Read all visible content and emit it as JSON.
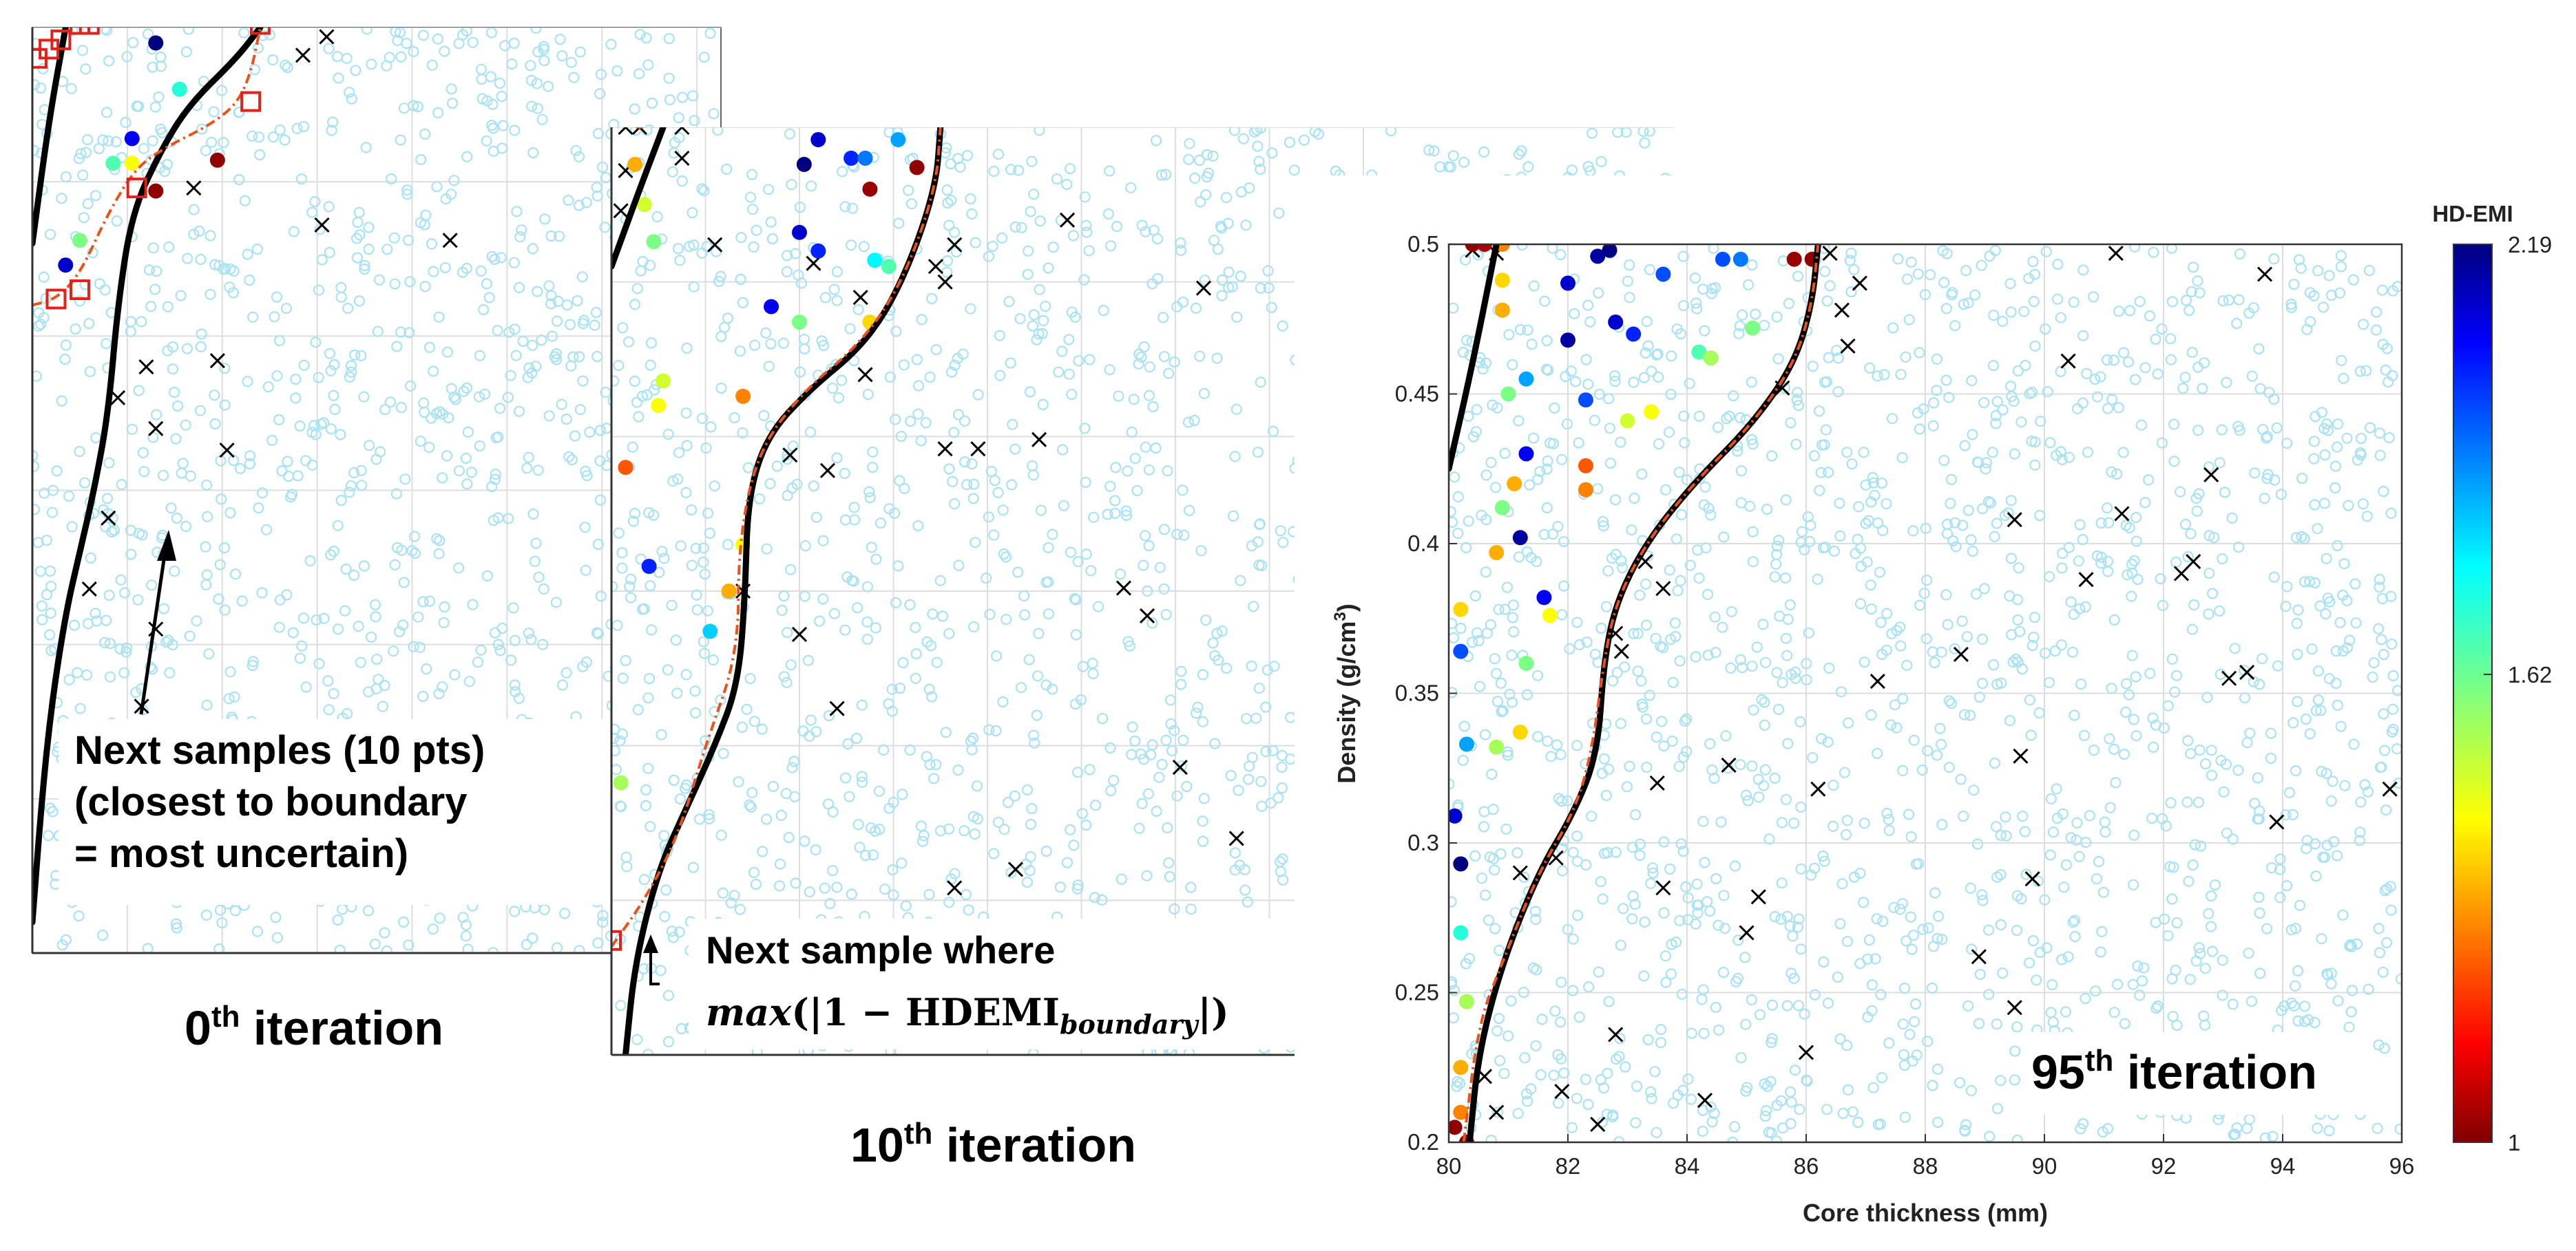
{
  "chart_data": [
    {
      "type": "scatter",
      "panel": "0th iteration",
      "title": "0th iteration",
      "title_ordinal": "0",
      "title_suffix": "th",
      "title_rest": " iteration",
      "xlim": [
        80,
        96
      ],
      "ylim": [
        0.2,
        0.5
      ],
      "annotation": [
        "Next samples (10 pts)",
        "(closest to boundary",
        "= most uncertain)"
      ],
      "true_boundary": [
        [
          80.0,
          0.21
        ],
        [
          80.2,
          0.25
        ],
        [
          80.4,
          0.28
        ],
        [
          80.7,
          0.31
        ],
        [
          81.0,
          0.33
        ],
        [
          81.3,
          0.35
        ],
        [
          81.6,
          0.375
        ],
        [
          81.8,
          0.41
        ],
        [
          82.1,
          0.44
        ],
        [
          82.7,
          0.46
        ],
        [
          83.3,
          0.475
        ],
        [
          84.3,
          0.49
        ],
        [
          84.8,
          0.5
        ]
      ],
      "true_boundary_left": [
        [
          80.0,
          0.43
        ],
        [
          80.35,
          0.47
        ],
        [
          80.7,
          0.5
        ]
      ],
      "estimated_boundary": [
        [
          80.0,
          0.41
        ],
        [
          80.5,
          0.412
        ],
        [
          81.0,
          0.42
        ],
        [
          81.6,
          0.44
        ],
        [
          82.2,
          0.455
        ],
        [
          82.9,
          0.462
        ],
        [
          83.7,
          0.468
        ],
        [
          84.3,
          0.475
        ],
        [
          84.6,
          0.485
        ],
        [
          84.8,
          0.5
        ]
      ],
      "next_samples": [
        [
          80.5,
          0.412
        ],
        [
          81.0,
          0.415
        ],
        [
          82.2,
          0.448
        ],
        [
          84.6,
          0.476
        ],
        [
          80.1,
          0.49
        ],
        [
          80.35,
          0.493
        ],
        [
          80.6,
          0.496
        ],
        [
          81.0,
          0.501
        ],
        [
          81.2,
          0.501
        ],
        [
          84.8,
          0.501
        ]
      ],
      "infeasible_x": [
        [
          86.2,
          0.497
        ],
        [
          85.7,
          0.491
        ],
        [
          83.4,
          0.448
        ],
        [
          86.1,
          0.436
        ],
        [
          88.8,
          0.431
        ],
        [
          82.4,
          0.39
        ],
        [
          83.9,
          0.392
        ],
        [
          81.8,
          0.38
        ],
        [
          82.6,
          0.37
        ],
        [
          84.1,
          0.363
        ],
        [
          81.6,
          0.341
        ],
        [
          81.2,
          0.318
        ],
        [
          82.6,
          0.305
        ],
        [
          82.3,
          0.28
        ],
        [
          81.7,
          0.27
        ]
      ],
      "labeled_points": [
        {
          "x": 82.6,
          "y": 0.495,
          "v": 2.19
        },
        {
          "x": 83.1,
          "y": 0.48,
          "v": 1.7
        },
        {
          "x": 82.1,
          "y": 0.464,
          "v": 2.05
        },
        {
          "x": 81.7,
          "y": 0.456,
          "v": 1.65
        },
        {
          "x": 82.1,
          "y": 0.456,
          "v": 1.45
        },
        {
          "x": 83.9,
          "y": 0.457,
          "v": 1.02
        },
        {
          "x": 82.6,
          "y": 0.447,
          "v": 1.02
        },
        {
          "x": 81.0,
          "y": 0.431,
          "v": 1.6
        },
        {
          "x": 80.7,
          "y": 0.423,
          "v": 2.1
        }
      ]
    },
    {
      "type": "scatter",
      "panel": "10th iteration",
      "title": "10th iteration",
      "title_ordinal": "10",
      "title_suffix": "th",
      "title_rest": " iteration",
      "xlim": [
        80,
        96
      ],
      "ylim": [
        0.2,
        0.5
      ],
      "annotation": [
        "Next sample where"
      ],
      "formula": {
        "fn": "max",
        "body": "(|1 − HDEMI",
        "subscript": "boundary",
        "close": "|)"
      },
      "true_boundary": [
        [
          80.3,
          0.2
        ],
        [
          80.5,
          0.23
        ],
        [
          81.0,
          0.26
        ],
        [
          81.6,
          0.28
        ],
        [
          82.2,
          0.3
        ],
        [
          82.7,
          0.32
        ],
        [
          82.85,
          0.35
        ],
        [
          82.9,
          0.38
        ],
        [
          83.3,
          0.4
        ],
        [
          84.2,
          0.415
        ],
        [
          85.4,
          0.43
        ],
        [
          86.2,
          0.45
        ],
        [
          86.9,
          0.48
        ],
        [
          87.0,
          0.5
        ]
      ],
      "true_boundary_left": [
        [
          80.0,
          0.455
        ],
        [
          80.6,
          0.48
        ],
        [
          81.1,
          0.5
        ]
      ],
      "estimated_boundary": [
        [
          80.0,
          0.235
        ],
        [
          80.7,
          0.25
        ],
        [
          81.4,
          0.27
        ],
        [
          82.0,
          0.3
        ],
        [
          82.7,
          0.33
        ],
        [
          82.7,
          0.365
        ],
        [
          83.1,
          0.395
        ],
        [
          84.1,
          0.415
        ],
        [
          85.3,
          0.43
        ],
        [
          86.2,
          0.45
        ],
        [
          86.9,
          0.48
        ],
        [
          87.0,
          0.5
        ]
      ],
      "next_sample": [
        80.0,
        0.237
      ],
      "infeasible_x": [
        [
          80.3,
          0.5
        ],
        [
          80.6,
          0.5
        ],
        [
          81.5,
          0.5
        ],
        [
          81.5,
          0.49
        ],
        [
          80.3,
          0.486
        ],
        [
          80.2,
          0.473
        ],
        [
          82.2,
          0.462
        ],
        [
          84.3,
          0.456
        ],
        [
          85.3,
          0.445
        ],
        [
          86.9,
          0.455
        ],
        [
          87.1,
          0.45
        ],
        [
          87.3,
          0.462
        ],
        [
          89.7,
          0.47
        ],
        [
          92.6,
          0.448
        ],
        [
          89.1,
          0.399
        ],
        [
          85.4,
          0.42
        ],
        [
          87.1,
          0.396
        ],
        [
          87.8,
          0.396
        ],
        [
          84.6,
          0.389
        ],
        [
          83.8,
          0.394
        ],
        [
          90.9,
          0.351
        ],
        [
          91.4,
          0.342
        ],
        [
          82.8,
          0.35
        ],
        [
          84.0,
          0.336
        ],
        [
          84.8,
          0.312
        ],
        [
          92.1,
          0.293
        ],
        [
          95.1,
          0.278
        ],
        [
          93.3,
          0.27
        ],
        [
          87.3,
          0.254
        ],
        [
          88.6,
          0.26
        ]
      ],
      "labeled_points": [
        {
          "x": 80.6,
          "y": 0.502,
          "v": 1.25
        },
        {
          "x": 84.1,
          "y": 0.488,
          "v": 2.19
        },
        {
          "x": 84.4,
          "y": 0.496,
          "v": 2.1
        },
        {
          "x": 85.1,
          "y": 0.49,
          "v": 2.0
        },
        {
          "x": 85.4,
          "y": 0.49,
          "v": 1.9
        },
        {
          "x": 86.1,
          "y": 0.496,
          "v": 1.85
        },
        {
          "x": 80.5,
          "y": 0.488,
          "v": 1.35
        },
        {
          "x": 80.7,
          "y": 0.475,
          "v": 1.5
        },
        {
          "x": 80.9,
          "y": 0.463,
          "v": 1.6
        },
        {
          "x": 84.0,
          "y": 0.466,
          "v": 2.1
        },
        {
          "x": 84.4,
          "y": 0.46,
          "v": 2.0
        },
        {
          "x": 85.6,
          "y": 0.457,
          "v": 1.75
        },
        {
          "x": 85.9,
          "y": 0.455,
          "v": 1.65
        },
        {
          "x": 83.4,
          "y": 0.442,
          "v": 2.05
        },
        {
          "x": 84.0,
          "y": 0.437,
          "v": 1.6
        },
        {
          "x": 85.5,
          "y": 0.437,
          "v": 1.4
        },
        {
          "x": 81.1,
          "y": 0.418,
          "v": 1.5
        },
        {
          "x": 81.0,
          "y": 0.41,
          "v": 1.45
        },
        {
          "x": 82.8,
          "y": 0.413,
          "v": 1.3
        },
        {
          "x": 80.3,
          "y": 0.39,
          "v": 1.25
        },
        {
          "x": 80.8,
          "y": 0.358,
          "v": 2.0
        },
        {
          "x": 82.8,
          "y": 0.365,
          "v": 1.45
        },
        {
          "x": 82.5,
          "y": 0.35,
          "v": 1.35
        },
        {
          "x": 82.1,
          "y": 0.337,
          "v": 1.8
        },
        {
          "x": 80.2,
          "y": 0.288,
          "v": 1.55
        },
        {
          "x": 85.5,
          "y": 0.48,
          "v": 1.03
        },
        {
          "x": 86.5,
          "y": 0.487,
          "v": 1.02
        }
      ]
    },
    {
      "type": "scatter",
      "panel": "95th iteration",
      "title": "95th iteration",
      "title_ordinal": "95",
      "title_suffix": "th",
      "title_rest": " iteration",
      "xlabel": "Core thickness (mm)",
      "ylabel": "Density (g/cm",
      "ylabel_sup": "3",
      "ylabel_close": ")",
      "xlim": [
        80,
        96
      ],
      "ylim": [
        0.2,
        0.5
      ],
      "xticks": [
        80,
        82,
        84,
        86,
        88,
        90,
        92,
        94,
        96
      ],
      "yticks": [
        0.2,
        0.25,
        0.3,
        0.35,
        0.4,
        0.45,
        0.5
      ],
      "xtick_labels": [
        "80",
        "82",
        "84",
        "86",
        "88",
        "90",
        "92",
        "94",
        "96"
      ],
      "ytick_labels": [
        "0.2",
        "0.25",
        "0.3",
        "0.35",
        "0.4",
        "0.45",
        "0.5"
      ],
      "grid": true,
      "colorbar": {
        "title": "HD-EMI",
        "min": 1,
        "max": 2.19,
        "tick_values": [
          1,
          1.62,
          2.19
        ],
        "tick_labels": [
          "1",
          "1.62",
          "2.19"
        ],
        "colormap": "jet-reversed"
      },
      "true_boundary": [
        [
          80.35,
          0.2
        ],
        [
          80.5,
          0.23
        ],
        [
          80.9,
          0.26
        ],
        [
          81.5,
          0.29
        ],
        [
          82.1,
          0.31
        ],
        [
          82.5,
          0.33
        ],
        [
          82.6,
          0.36
        ],
        [
          82.8,
          0.38
        ],
        [
          83.3,
          0.4
        ],
        [
          84.1,
          0.42
        ],
        [
          85.1,
          0.44
        ],
        [
          85.8,
          0.46
        ],
        [
          86.1,
          0.48
        ],
        [
          86.2,
          0.5
        ]
      ],
      "true_boundary_left": [
        [
          80.0,
          0.425
        ],
        [
          80.4,
          0.46
        ],
        [
          80.8,
          0.5
        ]
      ],
      "estimated_boundary": [
        [
          80.25,
          0.2
        ],
        [
          80.5,
          0.24
        ],
        [
          80.9,
          0.26
        ],
        [
          81.5,
          0.29
        ],
        [
          82.1,
          0.31
        ],
        [
          82.4,
          0.33
        ],
        [
          82.6,
          0.36
        ],
        [
          82.8,
          0.38
        ],
        [
          83.3,
          0.4
        ],
        [
          84.1,
          0.42
        ],
        [
          85.1,
          0.44
        ],
        [
          85.8,
          0.46
        ],
        [
          86.1,
          0.48
        ],
        [
          86.2,
          0.5
        ]
      ],
      "infeasible_x": [
        [
          80.4,
          0.498
        ],
        [
          80.8,
          0.497
        ],
        [
          86.4,
          0.497
        ],
        [
          86.9,
          0.487
        ],
        [
          86.6,
          0.478
        ],
        [
          91.2,
          0.497
        ],
        [
          93.7,
          0.49
        ],
        [
          86.7,
          0.466
        ],
        [
          90.4,
          0.461
        ],
        [
          85.6,
          0.452
        ],
        [
          92.8,
          0.423
        ],
        [
          91.3,
          0.41
        ],
        [
          89.5,
          0.408
        ],
        [
          90.7,
          0.388
        ],
        [
          92.3,
          0.39
        ],
        [
          92.5,
          0.394
        ],
        [
          83.3,
          0.394
        ],
        [
          83.6,
          0.385
        ],
        [
          82.8,
          0.37
        ],
        [
          82.9,
          0.364
        ],
        [
          87.2,
          0.354
        ],
        [
          88.6,
          0.363
        ],
        [
          93.1,
          0.355
        ],
        [
          93.4,
          0.357
        ],
        [
          84.7,
          0.326
        ],
        [
          86.2,
          0.318
        ],
        [
          89.6,
          0.329
        ],
        [
          83.5,
          0.32
        ],
        [
          81.8,
          0.295
        ],
        [
          81.2,
          0.29
        ],
        [
          83.6,
          0.285
        ],
        [
          85.2,
          0.282
        ],
        [
          85.0,
          0.27
        ],
        [
          89.8,
          0.288
        ],
        [
          93.9,
          0.307
        ],
        [
          95.8,
          0.318
        ],
        [
          88.9,
          0.262
        ],
        [
          89.5,
          0.245
        ],
        [
          91.9,
          0.23
        ],
        [
          86.0,
          0.23
        ],
        [
          82.8,
          0.236
        ],
        [
          84.3,
          0.214
        ],
        [
          82.5,
          0.206
        ],
        [
          81.9,
          0.217
        ],
        [
          80.8,
          0.21
        ],
        [
          80.6,
          0.222
        ]
      ],
      "labeled_points": [
        {
          "x": 80.4,
          "y": 0.5,
          "v": 1.02
        },
        {
          "x": 80.6,
          "y": 0.5,
          "v": 1.05
        },
        {
          "x": 80.9,
          "y": 0.5,
          "v": 1.3
        },
        {
          "x": 82.7,
          "y": 0.498,
          "v": 2.19
        },
        {
          "x": 82.5,
          "y": 0.496,
          "v": 2.15
        },
        {
          "x": 84.6,
          "y": 0.495,
          "v": 1.95
        },
        {
          "x": 84.9,
          "y": 0.495,
          "v": 1.9
        },
        {
          "x": 86.1,
          "y": 0.495,
          "v": 1.02
        },
        {
          "x": 85.8,
          "y": 0.495,
          "v": 1.03
        },
        {
          "x": 82.0,
          "y": 0.487,
          "v": 2.1
        },
        {
          "x": 83.6,
          "y": 0.49,
          "v": 1.95
        },
        {
          "x": 80.9,
          "y": 0.488,
          "v": 1.4
        },
        {
          "x": 80.9,
          "y": 0.478,
          "v": 1.35
        },
        {
          "x": 82.8,
          "y": 0.474,
          "v": 2.1
        },
        {
          "x": 83.1,
          "y": 0.47,
          "v": 2.0
        },
        {
          "x": 84.2,
          "y": 0.464,
          "v": 1.65
        },
        {
          "x": 84.4,
          "y": 0.462,
          "v": 1.55
        },
        {
          "x": 85.1,
          "y": 0.472,
          "v": 1.6
        },
        {
          "x": 82.0,
          "y": 0.468,
          "v": 2.15
        },
        {
          "x": 81.3,
          "y": 0.455,
          "v": 1.85
        },
        {
          "x": 81.0,
          "y": 0.45,
          "v": 1.6
        },
        {
          "x": 82.3,
          "y": 0.448,
          "v": 1.95
        },
        {
          "x": 83.0,
          "y": 0.441,
          "v": 1.5
        },
        {
          "x": 83.4,
          "y": 0.444,
          "v": 1.45
        },
        {
          "x": 82.3,
          "y": 0.426,
          "v": 1.25
        },
        {
          "x": 81.3,
          "y": 0.43,
          "v": 2.05
        },
        {
          "x": 81.1,
          "y": 0.42,
          "v": 1.35
        },
        {
          "x": 80.9,
          "y": 0.412,
          "v": 1.6
        },
        {
          "x": 81.2,
          "y": 0.402,
          "v": 2.15
        },
        {
          "x": 82.3,
          "y": 0.418,
          "v": 1.3
        },
        {
          "x": 80.8,
          "y": 0.397,
          "v": 1.35
        },
        {
          "x": 81.6,
          "y": 0.382,
          "v": 2.05
        },
        {
          "x": 81.7,
          "y": 0.376,
          "v": 1.45
        },
        {
          "x": 80.2,
          "y": 0.378,
          "v": 1.4
        },
        {
          "x": 80.2,
          "y": 0.364,
          "v": 1.95
        },
        {
          "x": 81.3,
          "y": 0.36,
          "v": 1.6
        },
        {
          "x": 80.8,
          "y": 0.332,
          "v": 1.55
        },
        {
          "x": 80.3,
          "y": 0.333,
          "v": 1.85
        },
        {
          "x": 81.2,
          "y": 0.337,
          "v": 1.4
        },
        {
          "x": 80.1,
          "y": 0.309,
          "v": 2.1
        },
        {
          "x": 80.2,
          "y": 0.293,
          "v": 2.19
        },
        {
          "x": 80.2,
          "y": 0.27,
          "v": 1.7
        },
        {
          "x": 80.3,
          "y": 0.247,
          "v": 1.55
        },
        {
          "x": 80.2,
          "y": 0.225,
          "v": 1.35
        },
        {
          "x": 80.2,
          "y": 0.21,
          "v": 1.3
        },
        {
          "x": 80.1,
          "y": 0.205,
          "v": 1.02
        },
        {
          "x": 80.3,
          "y": 0.2,
          "v": 1.01
        }
      ]
    }
  ],
  "colors": {
    "feasible_marker": "#a8e2f4",
    "boundary_true": "#000000",
    "boundary_estimate": "#e8531c",
    "next_sample": "#e32019",
    "infeasible_marker": "#000000",
    "grid": "#dddddd"
  }
}
